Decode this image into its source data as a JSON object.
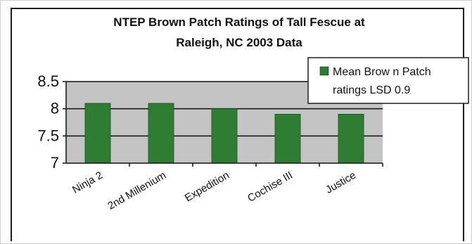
{
  "chart_data": {
    "type": "bar",
    "title": "NTEP Brown Patch Ratings of Tall Fescue at Raleigh, NC 2003 Data",
    "title_lines": [
      "NTEP Brown Patch Ratings of Tall Fescue at",
      "Raleigh, NC 2003 Data"
    ],
    "categories": [
      "Ninja 2",
      "2nd Millenium",
      "Expedition",
      "Cochise III",
      "Justice"
    ],
    "series": [
      {
        "name": "Mean Brown Patch ratings LSD 0.9",
        "legend_lines": [
          "Mean Brow n Patch",
          "ratings LSD 0.9"
        ],
        "values": [
          8.1,
          8.1,
          8.0,
          7.9,
          7.9
        ],
        "color": "#2e7d32"
      }
    ],
    "yticks": [
      "7",
      "7.5",
      "8",
      "8.5"
    ],
    "ylim": [
      7,
      8.5
    ],
    "grid": true,
    "legend_position": "top-right",
    "plot_background": "#c4c4c4"
  }
}
